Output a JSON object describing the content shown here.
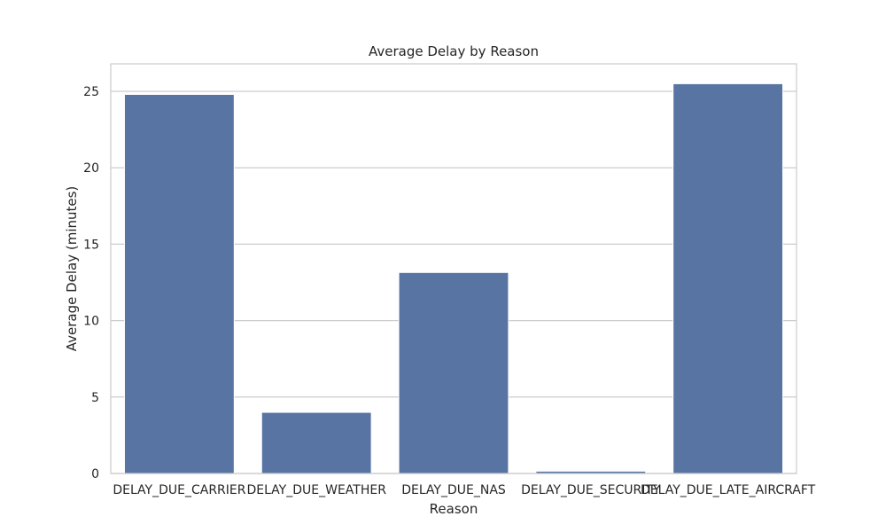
{
  "chart_data": {
    "type": "bar",
    "title": "Average Delay by Reason",
    "xlabel": "Reason",
    "ylabel": "Average Delay (minutes)",
    "categories": [
      "DELAY_DUE_CARRIER",
      "DELAY_DUE_WEATHER",
      "DELAY_DUE_NAS",
      "DELAY_DUE_SECURITY",
      "DELAY_DUE_LATE_AIRCRAFT"
    ],
    "values": [
      24.8,
      4.0,
      13.15,
      0.15,
      25.5
    ],
    "ylim": [
      0,
      26.8
    ],
    "yticks": [
      0,
      5,
      10,
      15,
      20,
      25
    ],
    "grid": true,
    "legend": "none",
    "colors": {
      "bar": "#5874a3",
      "grid": "#cccccc",
      "frame": "#cccccc",
      "text": "#262626"
    }
  }
}
